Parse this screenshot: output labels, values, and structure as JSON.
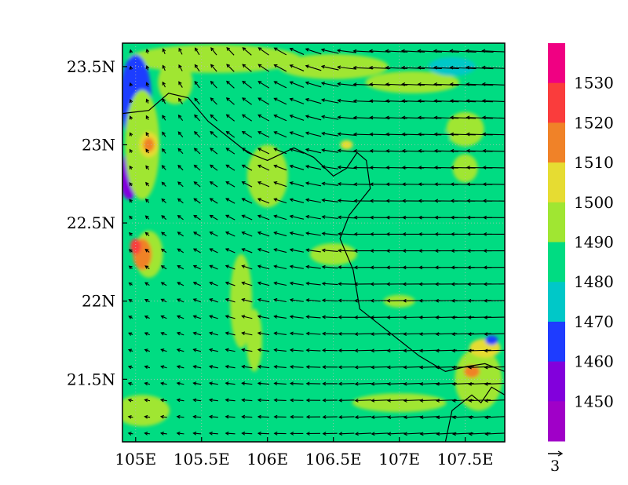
{
  "chart_data": {
    "type": "heatmap",
    "title": "",
    "xlabel": "",
    "ylabel": "",
    "x_ticks": [
      "105E",
      "105.5E",
      "106E",
      "106.5E",
      "107E",
      "107.5E"
    ],
    "y_ticks": [
      "23.5N",
      "23N",
      "22.5N",
      "22N",
      "21.5N"
    ],
    "x_range": [
      104.9,
      107.8
    ],
    "y_range": [
      21.1,
      23.65
    ],
    "colorbar": {
      "labels": [
        "1450",
        "1460",
        "1470",
        "1480",
        "1490",
        "1500",
        "1510",
        "1520",
        "1530"
      ],
      "colors": [
        "#a000c8",
        "#8200dc",
        "#1e3cff",
        "#00c8c8",
        "#00dc82",
        "#a0e632",
        "#e6dc32",
        "#f08228",
        "#fa3c3c",
        "#f00082"
      ]
    },
    "wind_field": {
      "reference_vector_label": "3",
      "dominant_direction": "westward"
    },
    "background_color": "#00dc82"
  }
}
